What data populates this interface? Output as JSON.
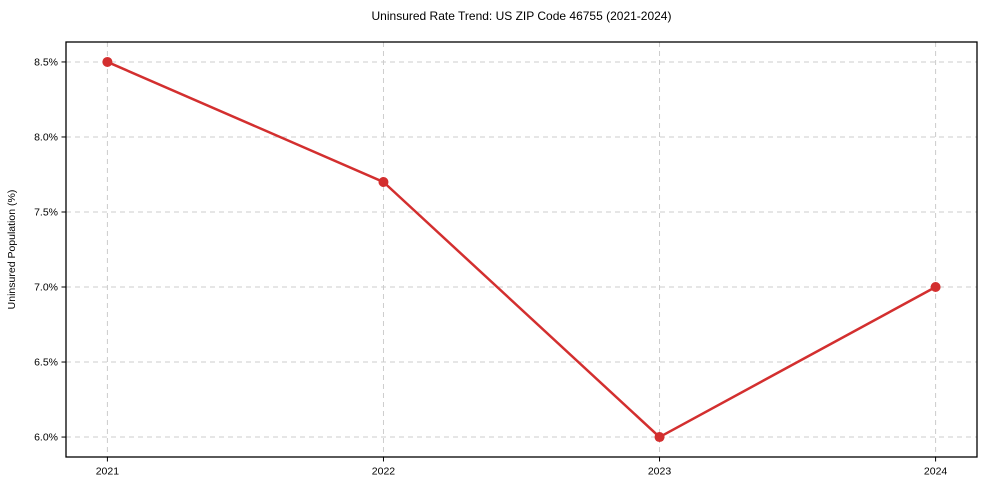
{
  "chart_data": {
    "type": "line",
    "title": "Uninsured Rate Trend: US ZIP Code 46755 (2021-2024)",
    "xlabel": "",
    "ylabel": "Uninsured Population (%)",
    "x": [
      2021,
      2022,
      2023,
      2024
    ],
    "x_tick_labels": [
      "2021",
      "2022",
      "2023",
      "2024"
    ],
    "series": [
      {
        "name": "Uninsured Rate",
        "values": [
          8.5,
          7.7,
          6.0,
          7.0
        ]
      }
    ],
    "yticks": [
      6.0,
      6.5,
      7.0,
      7.5,
      8.0,
      8.5
    ],
    "y_tick_labels": [
      "6.0%",
      "6.5%",
      "7.0%",
      "7.5%",
      "8.0%",
      "8.5%"
    ],
    "ylim": [
      5.867,
      8.633
    ],
    "xlim": [
      2020.85,
      2024.15
    ],
    "grid": "dashed",
    "legend_position": "none",
    "colors": {
      "line": "#d32f2f",
      "marker": "#d32f2f",
      "grid": "#cccccc",
      "axis_frame": "#000000",
      "text": "#000000",
      "background": "#ffffff"
    },
    "marker": "circle",
    "line_width": 2.5,
    "marker_radius": 5
  }
}
